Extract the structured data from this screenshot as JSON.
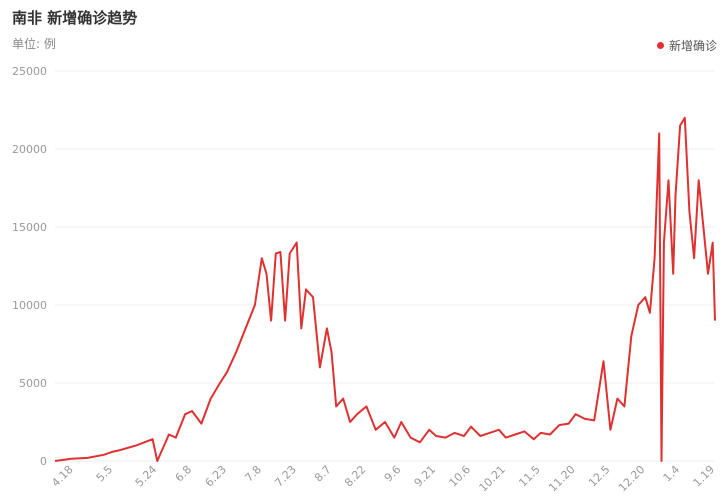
{
  "header": {
    "title": "南非 新增确诊趋势",
    "unit": "单位: 例"
  },
  "chart_data": {
    "type": "line",
    "title": "南非 新增确诊趋势",
    "ylabel": "单位: 例",
    "xlabel": "",
    "ylim": [
      0,
      25000
    ],
    "y_ticks": [
      0,
      5000,
      10000,
      15000,
      20000,
      25000
    ],
    "x_tick_labels": [
      "4.18",
      "5.5",
      "5.24",
      "6.8",
      "6.23",
      "7.8",
      "7.23",
      "8.7",
      "8.22",
      "9.6",
      "9.21",
      "10.6",
      "10.21",
      "11.5",
      "11.20",
      "12.5",
      "12.20",
      "1.4",
      "1.19"
    ],
    "legend": {
      "position": "top-right"
    },
    "grid": true,
    "series": [
      {
        "name": "新增确诊",
        "color": "#e03131",
        "x": [
          "4.10",
          "4.17",
          "4.24",
          "5.1",
          "5.5",
          "5.8",
          "5.15",
          "5.22",
          "5.24",
          "5.29",
          "6.1",
          "6.5",
          "6.8",
          "6.12",
          "6.16",
          "6.20",
          "6.23",
          "6.27",
          "7.1",
          "7.5",
          "7.8",
          "7.10",
          "7.12",
          "7.14",
          "7.16",
          "7.18",
          "7.20",
          "7.23",
          "7.25",
          "7.27",
          "7.30",
          "8.2",
          "8.5",
          "8.7",
          "8.9",
          "8.12",
          "8.15",
          "8.18",
          "8.22",
          "8.26",
          "8.30",
          "9.3",
          "9.6",
          "9.10",
          "9.14",
          "9.18",
          "9.21",
          "9.25",
          "9.29",
          "10.3",
          "10.6",
          "10.10",
          "10.14",
          "10.18",
          "10.21",
          "10.25",
          "10.29",
          "11.2",
          "11.5",
          "11.9",
          "11.13",
          "11.17",
          "11.20",
          "11.24",
          "11.28",
          "12.2",
          "12.5",
          "12.8",
          "12.11",
          "12.14",
          "12.17",
          "12.20",
          "12.22",
          "12.24",
          "12.26",
          "12.27",
          "12.28",
          "12.30",
          "1.1",
          "1.2",
          "1.4",
          "1.6",
          "1.8",
          "1.10",
          "1.12",
          "1.14",
          "1.16",
          "1.18",
          "1.19"
        ],
        "values": [
          0,
          150,
          200,
          400,
          600,
          700,
          1000,
          1400,
          0,
          1700,
          1500,
          3000,
          3200,
          2400,
          4000,
          5000,
          5700,
          7000,
          8500,
          10000,
          13000,
          12000,
          9000,
          13300,
          13400,
          9000,
          13300,
          14000,
          8500,
          11000,
          10500,
          6000,
          8500,
          7000,
          3500,
          4000,
          2500,
          3000,
          3500,
          2000,
          2500,
          1500,
          2500,
          1500,
          1200,
          2000,
          1600,
          1500,
          1800,
          1600,
          2200,
          1600,
          1800,
          2000,
          1500,
          1700,
          1900,
          1400,
          1800,
          1700,
          2300,
          2400,
          3000,
          2700,
          2600,
          6400,
          2000,
          4000,
          3500,
          8000,
          10000,
          10500,
          9500,
          13000,
          21000,
          0,
          14000,
          18000,
          12000,
          17000,
          21500,
          22000,
          16000,
          13000,
          18000,
          15000,
          12000,
          14000,
          9000
        ]
      }
    ]
  }
}
